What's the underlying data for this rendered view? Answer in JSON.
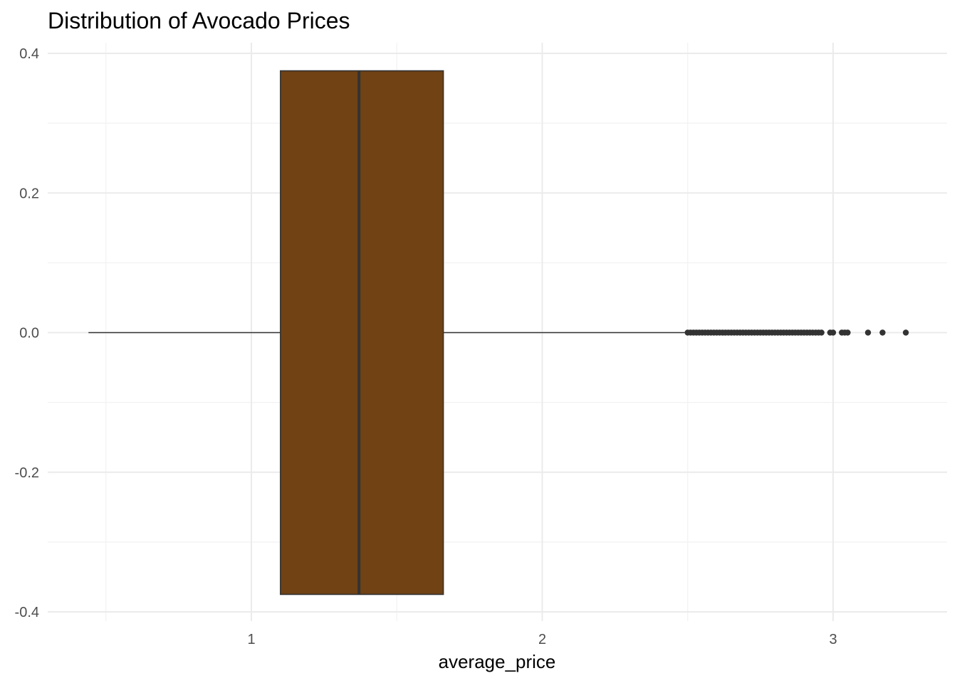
{
  "chart_data": {
    "type": "boxplot",
    "title": "Distribution of Avocado Prices",
    "xlabel": "average_price",
    "ylabel": "",
    "xlim": [
      0.44,
      3.5
    ],
    "ylim": [
      -0.4,
      0.4
    ],
    "x_ticks": [
      1,
      2,
      3
    ],
    "x_tick_labels": [
      "1",
      "2",
      "3"
    ],
    "y_ticks": [
      0.4,
      0.2,
      0.0,
      -0.2,
      -0.4
    ],
    "y_tick_labels": [
      "0.4",
      "0.2",
      "0.0",
      "-0.2",
      "-0.4"
    ],
    "grid": true,
    "box": {
      "whisker_low": 0.44,
      "q1": 1.1,
      "median": 1.37,
      "q3": 1.66,
      "whisker_high": 2.49,
      "y_center": 0.0,
      "half_height": 0.375,
      "fill_color": "#704214",
      "line_color": "#333333"
    },
    "outliers": [
      2.5,
      2.51,
      2.52,
      2.53,
      2.54,
      2.55,
      2.56,
      2.57,
      2.58,
      2.59,
      2.6,
      2.61,
      2.62,
      2.63,
      2.64,
      2.65,
      2.66,
      2.67,
      2.68,
      2.69,
      2.7,
      2.71,
      2.72,
      2.73,
      2.74,
      2.75,
      2.76,
      2.77,
      2.78,
      2.79,
      2.8,
      2.81,
      2.82,
      2.83,
      2.84,
      2.85,
      2.86,
      2.87,
      2.88,
      2.89,
      2.9,
      2.91,
      2.92,
      2.93,
      2.94,
      2.95,
      2.96,
      2.99,
      3.0,
      3.03,
      3.04,
      3.05,
      3.12,
      3.17,
      3.25
    ]
  }
}
